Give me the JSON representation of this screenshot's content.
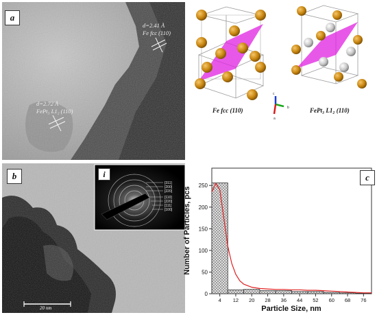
{
  "panel_a": {
    "letter": "a",
    "label1_line1": "d=2.41 Å",
    "label1_line2": "Fe fcc (110)",
    "label2_line1": "d=2.72 Å",
    "label2_line2": "FePt₃ L1₂ (110)"
  },
  "crystal": {
    "caption_left": "Fe fcc (110)",
    "caption_right": "FePt₃ L1₂ (110)",
    "axes": {
      "c": "c",
      "b": "b",
      "a": "a"
    },
    "colors": {
      "fe": "#c8860f",
      "pt": "#c8c8c8",
      "plane": "#e020e0"
    }
  },
  "panel_b": {
    "letter": "b",
    "inset_letter": "i",
    "scale_bar": "20 nm",
    "rings": [
      "[311]",
      "[200]",
      "[220]",
      "[110]",
      "[220]",
      "[111]",
      "[100]"
    ]
  },
  "chart_data": {
    "type": "bar",
    "panel_letter": "c",
    "xlabel": "Particle Size, nm",
    "ylabel": "Number of Particles, pcs",
    "x_ticks": [
      4,
      12,
      20,
      28,
      36,
      44,
      52,
      60,
      68,
      76
    ],
    "y_ticks": [
      0,
      50,
      100,
      150,
      200,
      250
    ],
    "xlim": [
      0,
      80
    ],
    "ylim": [
      0,
      290
    ],
    "bin_width": 8,
    "bins": [
      4,
      12,
      20,
      28,
      36,
      44,
      52,
      60,
      68,
      76
    ],
    "values": [
      256,
      9,
      10,
      7,
      7,
      5,
      5,
      3,
      2,
      1
    ],
    "fit_curve": {
      "color": "#e02020",
      "x": [
        0,
        2,
        4,
        6,
        8,
        10,
        12,
        14,
        16,
        20,
        24,
        28,
        32,
        36,
        40,
        44,
        48,
        52,
        56,
        60,
        64,
        68,
        72,
        76,
        80
      ],
      "y": [
        235,
        255,
        240,
        175,
        110,
        70,
        45,
        30,
        22,
        15,
        12,
        11,
        10,
        10,
        9,
        9,
        8,
        8,
        7,
        6,
        5,
        4,
        3,
        2,
        2
      ]
    },
    "bar_color": "#cccccc"
  }
}
